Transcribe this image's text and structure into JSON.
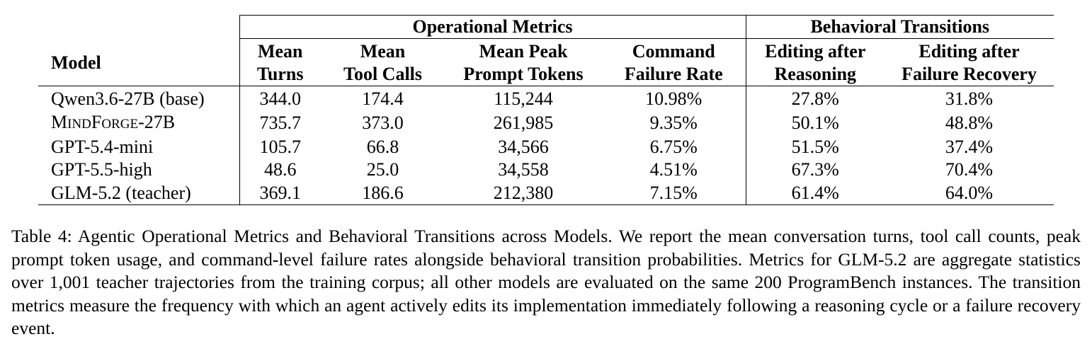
{
  "table": {
    "group_headers": [
      "Operational Metrics",
      "Behavioral Transitions"
    ],
    "model_header": "Model",
    "column_headers": [
      [
        "Mean",
        "Turns"
      ],
      [
        "Mean",
        "Tool Calls"
      ],
      [
        "Mean Peak",
        "Prompt Tokens"
      ],
      [
        "Command",
        "Failure Rate"
      ],
      [
        "Editing after",
        "Reasoning"
      ],
      [
        "Editing after",
        "Failure Recovery"
      ]
    ],
    "rows": [
      {
        "model": "Qwen3.6-27B (base)",
        "values": [
          "344.0",
          "174.4",
          "115,244",
          "10.98%",
          "27.8%",
          "31.8%"
        ]
      },
      {
        "model": "MindForge-27B",
        "model_parts": [
          "M",
          "IND",
          "F",
          "ORGE",
          "-27B"
        ],
        "values": [
          "735.7",
          "373.0",
          "261,985",
          "9.35%",
          "50.1%",
          "48.8%"
        ]
      },
      {
        "model": "GPT-5.4-mini",
        "values": [
          "105.7",
          "66.8",
          "34,566",
          "6.75%",
          "51.5%",
          "37.4%"
        ]
      },
      {
        "model": "GPT-5.5-high",
        "values": [
          "48.6",
          "25.0",
          "34,558",
          "4.51%",
          "67.3%",
          "70.4%"
        ]
      },
      {
        "model": "GLM-5.2 (teacher)",
        "values": [
          "369.1",
          "186.6",
          "212,380",
          "7.15%",
          "61.4%",
          "64.0%"
        ]
      }
    ]
  },
  "caption": "Table 4: Agentic Operational Metrics and Behavioral Transitions across Models. We report the mean conversation turns, tool call counts, peak prompt token usage, and command-level failure rates alongside behavioral transition probabilities. Metrics for GLM-5.2 are aggregate statistics over 1,001 teacher trajectories from the training corpus; all other models are evaluated on the same 200 ProgramBench instances. The transition metrics measure the frequency with which an agent actively edits its implementation immediately following a reasoning cycle or a failure recovery event."
}
